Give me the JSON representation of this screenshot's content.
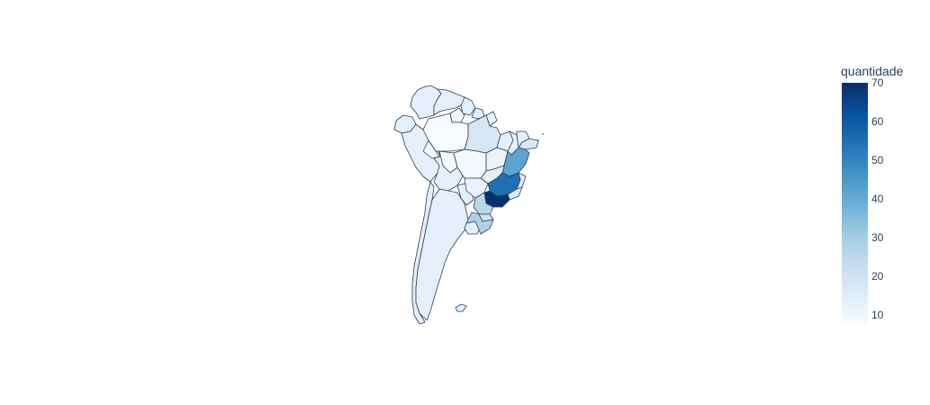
{
  "chart_data": {
    "type": "choropleth",
    "scope": "south america",
    "colorscale": [
      "#f7fbff",
      "#deebf7",
      "#c6dbef",
      "#9ecae1",
      "#6baed6",
      "#4292c6",
      "#2171b5",
      "#08519c",
      "#08306b"
    ],
    "colorbar": {
      "title": "quantidade",
      "range": [
        8,
        70
      ],
      "ticks": [
        "70",
        "60",
        "50",
        "40",
        "30",
        "20",
        "10"
      ]
    },
    "regions": [
      {
        "id": "sao-paulo",
        "value": 70
      },
      {
        "id": "minas-gerais",
        "value": 55
      },
      {
        "id": "bahia",
        "value": 42
      },
      {
        "id": "rio-grande-do-sul",
        "value": 28
      },
      {
        "id": "parana",
        "value": 26
      },
      {
        "id": "santa-catarina",
        "value": 20
      },
      {
        "id": "para",
        "value": 18
      },
      {
        "id": "pernambuco",
        "value": 17
      },
      {
        "id": "rio-de-janeiro",
        "value": 16
      },
      {
        "id": "espirito-santo",
        "value": 15
      },
      {
        "id": "goias",
        "value": 14
      },
      {
        "id": "maranhao",
        "value": 14
      },
      {
        "id": "ceara",
        "value": 14
      },
      {
        "id": "piaui",
        "value": 13
      },
      {
        "id": "tocantins",
        "value": 12
      },
      {
        "id": "mato-grosso-do-sul",
        "value": 12
      },
      {
        "id": "amazonas",
        "value": 8
      },
      {
        "id": "mato-grosso",
        "value": 9
      },
      {
        "id": "rondonia",
        "value": 9
      },
      {
        "id": "acre",
        "value": 10
      },
      {
        "id": "roraima",
        "value": 10
      },
      {
        "id": "amapa",
        "value": 11
      },
      {
        "id": "colombia",
        "value": 14
      },
      {
        "id": "venezuela",
        "value": 14
      },
      {
        "id": "guyana",
        "value": 14
      },
      {
        "id": "suriname",
        "value": 14
      },
      {
        "id": "ecuador",
        "value": 14
      },
      {
        "id": "peru",
        "value": 14
      },
      {
        "id": "bolivia",
        "value": 14
      },
      {
        "id": "paraguay",
        "value": 14
      },
      {
        "id": "chile",
        "value": 14
      },
      {
        "id": "argentina",
        "value": 14
      },
      {
        "id": "uruguay",
        "value": 14
      },
      {
        "id": "falklands",
        "value": 14
      }
    ]
  }
}
